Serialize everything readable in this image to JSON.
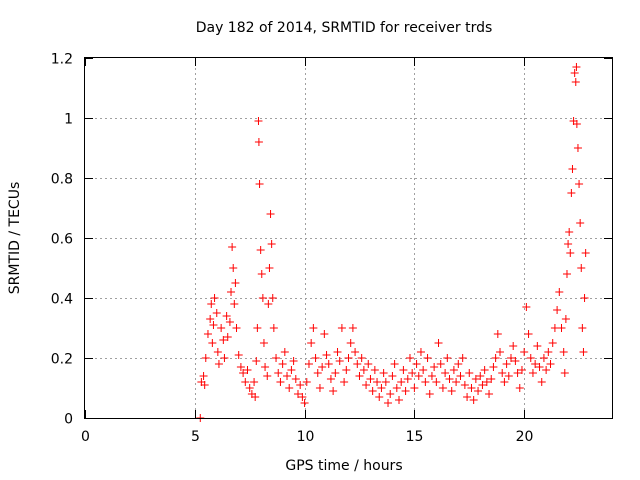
{
  "colors": {
    "series": "#ff0000",
    "grid": "#a0a0a0",
    "frame": "#000000"
  },
  "chart_data": {
    "type": "scatter",
    "title": "Day 182 of 2014, SRMTID for receiver trds",
    "xlabel": "GPS time / hours",
    "ylabel": "SRMTID / TECUs",
    "xlim": [
      0,
      24
    ],
    "ylim": [
      0,
      1.2
    ],
    "xticks": [
      0,
      5,
      10,
      15,
      20
    ],
    "xtick_labels": [
      "0",
      "5",
      "10",
      "15",
      "20"
    ],
    "yticks": [
      0,
      0.2,
      0.4,
      0.6,
      0.8,
      1.0,
      1.2
    ],
    "ytick_labels": [
      "0",
      "0.2",
      "0.4",
      "0.6",
      "0.8",
      "1",
      "1.2"
    ],
    "grid": true,
    "marker": "+",
    "series": [
      {
        "name": "SRMTID",
        "points": [
          [
            5.25,
            0.0
          ],
          [
            5.3,
            0.12
          ],
          [
            5.4,
            0.14
          ],
          [
            5.45,
            0.11
          ],
          [
            5.5,
            0.2
          ],
          [
            5.6,
            0.28
          ],
          [
            5.7,
            0.33
          ],
          [
            5.75,
            0.38
          ],
          [
            5.8,
            0.25
          ],
          [
            5.85,
            0.31
          ],
          [
            5.9,
            0.4
          ],
          [
            6.0,
            0.35
          ],
          [
            6.05,
            0.22
          ],
          [
            6.1,
            0.18
          ],
          [
            6.2,
            0.3
          ],
          [
            6.3,
            0.26
          ],
          [
            6.35,
            0.2
          ],
          [
            6.45,
            0.34
          ],
          [
            6.5,
            0.27
          ],
          [
            6.6,
            0.32
          ],
          [
            6.65,
            0.42
          ],
          [
            6.7,
            0.57
          ],
          [
            6.75,
            0.5
          ],
          [
            6.8,
            0.38
          ],
          [
            6.85,
            0.45
          ],
          [
            6.9,
            0.3
          ],
          [
            7.0,
            0.21
          ],
          [
            7.1,
            0.17
          ],
          [
            7.2,
            0.15
          ],
          [
            7.3,
            0.12
          ],
          [
            7.4,
            0.16
          ],
          [
            7.5,
            0.1
          ],
          [
            7.6,
            0.08
          ],
          [
            7.7,
            0.12
          ],
          [
            7.75,
            0.07
          ],
          [
            7.8,
            0.19
          ],
          [
            7.85,
            0.3
          ],
          [
            7.9,
            0.99
          ],
          [
            7.92,
            0.92
          ],
          [
            7.95,
            0.78
          ],
          [
            8.0,
            0.56
          ],
          [
            8.05,
            0.48
          ],
          [
            8.1,
            0.4
          ],
          [
            8.15,
            0.25
          ],
          [
            8.2,
            0.17
          ],
          [
            8.3,
            0.14
          ],
          [
            8.35,
            0.38
          ],
          [
            8.4,
            0.5
          ],
          [
            8.45,
            0.68
          ],
          [
            8.5,
            0.58
          ],
          [
            8.55,
            0.4
          ],
          [
            8.6,
            0.3
          ],
          [
            8.7,
            0.2
          ],
          [
            8.8,
            0.15
          ],
          [
            8.9,
            0.12
          ],
          [
            9.0,
            0.18
          ],
          [
            9.1,
            0.22
          ],
          [
            9.2,
            0.14
          ],
          [
            9.3,
            0.1
          ],
          [
            9.4,
            0.16
          ],
          [
            9.5,
            0.19
          ],
          [
            9.6,
            0.13
          ],
          [
            9.7,
            0.08
          ],
          [
            9.8,
            0.11
          ],
          [
            9.9,
            0.07
          ],
          [
            10.0,
            0.05
          ],
          [
            10.1,
            0.12
          ],
          [
            10.2,
            0.18
          ],
          [
            10.3,
            0.25
          ],
          [
            10.4,
            0.3
          ],
          [
            10.5,
            0.2
          ],
          [
            10.6,
            0.15
          ],
          [
            10.7,
            0.1
          ],
          [
            10.8,
            0.17
          ],
          [
            10.9,
            0.28
          ],
          [
            11.0,
            0.21
          ],
          [
            11.1,
            0.18
          ],
          [
            11.2,
            0.13
          ],
          [
            11.3,
            0.09
          ],
          [
            11.4,
            0.15
          ],
          [
            11.5,
            0.22
          ],
          [
            11.6,
            0.19
          ],
          [
            11.7,
            0.3
          ],
          [
            11.8,
            0.12
          ],
          [
            11.9,
            0.16
          ],
          [
            12.0,
            0.2
          ],
          [
            12.1,
            0.25
          ],
          [
            12.2,
            0.3
          ],
          [
            12.3,
            0.22
          ],
          [
            12.4,
            0.18
          ],
          [
            12.5,
            0.14
          ],
          [
            12.6,
            0.2
          ],
          [
            12.7,
            0.16
          ],
          [
            12.8,
            0.11
          ],
          [
            12.9,
            0.18
          ],
          [
            13.0,
            0.13
          ],
          [
            13.1,
            0.09
          ],
          [
            13.2,
            0.16
          ],
          [
            13.3,
            0.12
          ],
          [
            13.4,
            0.07
          ],
          [
            13.5,
            0.1
          ],
          [
            13.6,
            0.15
          ],
          [
            13.7,
            0.12
          ],
          [
            13.8,
            0.05
          ],
          [
            13.9,
            0.08
          ],
          [
            14.0,
            0.14
          ],
          [
            14.1,
            0.18
          ],
          [
            14.2,
            0.1
          ],
          [
            14.3,
            0.06
          ],
          [
            14.4,
            0.12
          ],
          [
            14.5,
            0.16
          ],
          [
            14.6,
            0.09
          ],
          [
            14.7,
            0.13
          ],
          [
            14.8,
            0.2
          ],
          [
            14.9,
            0.15
          ],
          [
            15.0,
            0.1
          ],
          [
            15.1,
            0.18
          ],
          [
            15.2,
            0.14
          ],
          [
            15.3,
            0.22
          ],
          [
            15.4,
            0.16
          ],
          [
            15.5,
            0.12
          ],
          [
            15.6,
            0.2
          ],
          [
            15.7,
            0.08
          ],
          [
            15.8,
            0.14
          ],
          [
            15.9,
            0.17
          ],
          [
            16.0,
            0.12
          ],
          [
            16.1,
            0.25
          ],
          [
            16.2,
            0.18
          ],
          [
            16.3,
            0.1
          ],
          [
            16.4,
            0.15
          ],
          [
            16.5,
            0.2
          ],
          [
            16.6,
            0.13
          ],
          [
            16.7,
            0.09
          ],
          [
            16.8,
            0.16
          ],
          [
            16.9,
            0.12
          ],
          [
            17.0,
            0.18
          ],
          [
            17.1,
            0.14
          ],
          [
            17.2,
            0.2
          ],
          [
            17.3,
            0.11
          ],
          [
            17.4,
            0.07
          ],
          [
            17.5,
            0.15
          ],
          [
            17.6,
            0.1
          ],
          [
            17.7,
            0.06
          ],
          [
            17.8,
            0.13
          ],
          [
            17.9,
            0.09
          ],
          [
            18.0,
            0.14
          ],
          [
            18.1,
            0.11
          ],
          [
            18.2,
            0.16
          ],
          [
            18.3,
            0.12
          ],
          [
            18.4,
            0.08
          ],
          [
            18.5,
            0.13
          ],
          [
            18.6,
            0.17
          ],
          [
            18.7,
            0.2
          ],
          [
            18.8,
            0.28
          ],
          [
            18.9,
            0.22
          ],
          [
            19.0,
            0.15
          ],
          [
            19.1,
            0.12
          ],
          [
            19.2,
            0.18
          ],
          [
            19.3,
            0.14
          ],
          [
            19.4,
            0.2
          ],
          [
            19.5,
            0.24
          ],
          [
            19.6,
            0.19
          ],
          [
            19.7,
            0.15
          ],
          [
            19.8,
            0.1
          ],
          [
            19.9,
            0.16
          ],
          [
            20.0,
            0.22
          ],
          [
            20.1,
            0.37
          ],
          [
            20.2,
            0.28
          ],
          [
            20.3,
            0.2
          ],
          [
            20.4,
            0.15
          ],
          [
            20.5,
            0.18
          ],
          [
            20.6,
            0.24
          ],
          [
            20.7,
            0.17
          ],
          [
            20.8,
            0.12
          ],
          [
            20.9,
            0.2
          ],
          [
            21.0,
            0.16
          ],
          [
            21.1,
            0.22
          ],
          [
            21.2,
            0.18
          ],
          [
            21.3,
            0.25
          ],
          [
            21.4,
            0.3
          ],
          [
            21.5,
            0.36
          ],
          [
            21.6,
            0.42
          ],
          [
            21.7,
            0.3
          ],
          [
            21.8,
            0.22
          ],
          [
            21.85,
            0.15
          ],
          [
            21.9,
            0.33
          ],
          [
            21.95,
            0.48
          ],
          [
            22.0,
            0.58
          ],
          [
            22.05,
            0.62
          ],
          [
            22.1,
            0.55
          ],
          [
            22.15,
            0.75
          ],
          [
            22.2,
            0.83
          ],
          [
            22.25,
            0.99
          ],
          [
            22.3,
            1.15
          ],
          [
            22.35,
            1.12
          ],
          [
            22.38,
            1.17
          ],
          [
            22.4,
            0.98
          ],
          [
            22.45,
            0.9
          ],
          [
            22.5,
            0.78
          ],
          [
            22.55,
            0.65
          ],
          [
            22.6,
            0.5
          ],
          [
            22.65,
            0.3
          ],
          [
            22.7,
            0.22
          ],
          [
            22.75,
            0.4
          ],
          [
            22.8,
            0.55
          ]
        ]
      }
    ]
  }
}
